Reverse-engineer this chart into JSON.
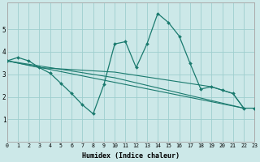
{
  "xlabel": "Humidex (Indice chaleur)",
  "bg_color": "#cce8e8",
  "grid_color": "#9ecece",
  "line_color": "#1a7a6e",
  "xlim": [
    0,
    23
  ],
  "ylim": [
    0,
    6.2
  ],
  "yticks": [
    1,
    2,
    3,
    4,
    5
  ],
  "xticks": [
    0,
    1,
    2,
    3,
    4,
    5,
    6,
    7,
    8,
    9,
    10,
    11,
    12,
    13,
    14,
    15,
    16,
    17,
    18,
    19,
    20,
    21,
    22,
    23
  ],
  "main_x": [
    0,
    1,
    2,
    3,
    4,
    5,
    6,
    7,
    8,
    9,
    10,
    11,
    12,
    13,
    14,
    15,
    16,
    17,
    18,
    19,
    20,
    21,
    22,
    23
  ],
  "main_y": [
    3.6,
    3.75,
    3.6,
    3.3,
    3.05,
    2.6,
    2.15,
    1.65,
    1.25,
    2.55,
    4.35,
    4.45,
    3.3,
    4.35,
    5.7,
    5.3,
    4.7,
    3.5,
    2.35,
    2.45,
    2.3,
    2.15,
    1.5,
    1.5
  ],
  "line2_x": [
    0,
    3,
    10,
    19,
    20,
    21,
    22
  ],
  "line2_y": [
    3.6,
    3.3,
    3.1,
    2.45,
    2.3,
    2.15,
    1.5
  ],
  "line3_x": [
    0,
    10,
    22
  ],
  "line3_y": [
    3.6,
    2.85,
    1.5
  ],
  "line4_x": [
    0,
    22
  ],
  "line4_y": [
    3.6,
    1.5
  ],
  "xlabel_fontsize": 6.0,
  "xtick_fontsize": 4.8,
  "ytick_fontsize": 5.5
}
